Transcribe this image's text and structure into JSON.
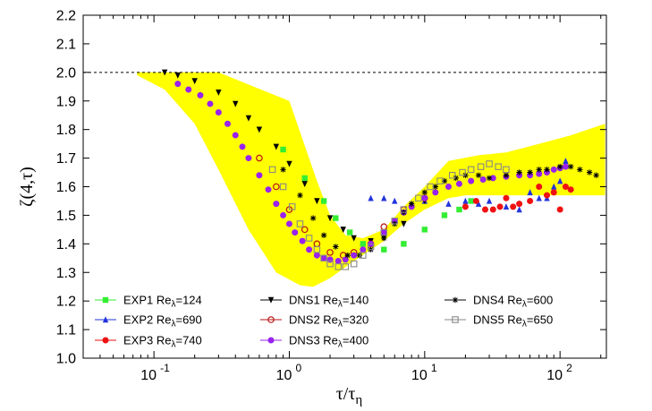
{
  "chart_data": {
    "type": "scatter",
    "xscale": "log",
    "xlim": [
      0.03,
      220
    ],
    "ylim": [
      1.0,
      2.2
    ],
    "xlabel": "τ/τη",
    "ylabel": "ζ(4,τ)",
    "xticks": [
      {
        "value": 0.1,
        "base": "10",
        "exp": "-1"
      },
      {
        "value": 1,
        "base": "10",
        "exp": "0"
      },
      {
        "value": 10,
        "base": "10",
        "exp": "1"
      },
      {
        "value": 100,
        "base": "10",
        "exp": "2"
      }
    ],
    "yticks": [
      "1.0",
      "1.1",
      "1.2",
      "1.3",
      "1.4",
      "1.5",
      "1.6",
      "1.7",
      "1.8",
      "1.9",
      "2.0",
      "2.1",
      "2.2"
    ],
    "reference_line": {
      "y": 2.0,
      "style": "dotted"
    },
    "band": {
      "color": "#ffff00",
      "upper": [
        [
          0.075,
          2.0
        ],
        [
          0.3,
          2.0
        ],
        [
          1.0,
          1.9
        ],
        [
          1.6,
          1.62
        ],
        [
          2.0,
          1.5
        ],
        [
          2.6,
          1.43
        ],
        [
          3.5,
          1.42
        ],
        [
          5,
          1.45
        ],
        [
          7,
          1.53
        ],
        [
          10,
          1.6
        ],
        [
          15,
          1.69
        ],
        [
          25,
          1.71
        ],
        [
          40,
          1.72
        ],
        [
          70,
          1.75
        ],
        [
          120,
          1.78
        ],
        [
          215,
          1.82
        ]
      ],
      "lower": [
        [
          215,
          1.57
        ],
        [
          120,
          1.57
        ],
        [
          60,
          1.57
        ],
        [
          30,
          1.57
        ],
        [
          20,
          1.57
        ],
        [
          15,
          1.56
        ],
        [
          10,
          1.52
        ],
        [
          7,
          1.47
        ],
        [
          5,
          1.41
        ],
        [
          3,
          1.34
        ],
        [
          2,
          1.28
        ],
        [
          1.5,
          1.25
        ],
        [
          1.2,
          1.255
        ],
        [
          0.8,
          1.3
        ],
        [
          0.5,
          1.45
        ],
        [
          0.3,
          1.66
        ],
        [
          0.2,
          1.82
        ],
        [
          0.12,
          1.94
        ],
        [
          0.075,
          1.99
        ]
      ]
    },
    "legend": {
      "placement": "bottom",
      "columns": 3
    },
    "series": [
      {
        "name": "EXP1",
        "sub_label": "Re",
        "sub": "λ",
        "value": "=124",
        "color": "#33ee33",
        "marker": "square",
        "points": [
          [
            0.9,
            1.73
          ],
          [
            1.3,
            1.63
          ],
          [
            1.8,
            1.55
          ],
          [
            2.2,
            1.49
          ],
          [
            2.8,
            1.44
          ],
          [
            3.5,
            1.4
          ],
          [
            5,
            1.38
          ],
          [
            7,
            1.4
          ],
          [
            10,
            1.45
          ],
          [
            14,
            1.5
          ],
          [
            18,
            1.52
          ],
          [
            22,
            1.55
          ]
        ]
      },
      {
        "name": "EXP2",
        "sub_label": "Re",
        "sub": "λ",
        "value": "=690",
        "color": "#2233dd",
        "marker": "triangle",
        "points": [
          [
            4,
            1.56
          ],
          [
            5,
            1.56
          ],
          [
            6,
            1.55
          ],
          [
            8,
            1.54
          ],
          [
            10,
            1.55
          ],
          [
            15,
            1.54
          ],
          [
            20,
            1.55
          ],
          [
            25,
            1.54
          ],
          [
            30,
            1.55
          ],
          [
            40,
            1.53
          ],
          [
            50,
            1.52
          ],
          [
            60,
            1.58
          ],
          [
            70,
            1.56
          ],
          [
            80,
            1.56
          ],
          [
            90,
            1.6
          ],
          [
            100,
            1.62
          ],
          [
            110,
            1.69
          ]
        ]
      },
      {
        "name": "EXP3",
        "sub_label": "Re",
        "sub": "λ",
        "value": "=740",
        "color": "#ee1111",
        "marker": "circle",
        "points": [
          [
            20,
            1.53
          ],
          [
            24,
            1.55
          ],
          [
            28,
            1.52
          ],
          [
            32,
            1.52
          ],
          [
            36,
            1.53
          ],
          [
            40,
            1.56
          ],
          [
            45,
            1.53
          ],
          [
            50,
            1.54
          ],
          [
            60,
            1.55
          ],
          [
            70,
            1.6
          ],
          [
            80,
            1.57
          ],
          [
            90,
            1.58
          ],
          [
            100,
            1.52
          ],
          [
            110,
            1.6
          ],
          [
            120,
            1.59
          ]
        ]
      },
      {
        "name": "DNS1",
        "sub_label": "Re",
        "sub": "λ",
        "value": "=140",
        "color": "#000000",
        "marker": "triangle-down",
        "points": [
          [
            0.12,
            2.0
          ],
          [
            0.15,
            1.99
          ],
          [
            0.2,
            1.97
          ],
          [
            0.3,
            1.93
          ],
          [
            0.4,
            1.89
          ],
          [
            0.5,
            1.84
          ],
          [
            0.6,
            1.8
          ],
          [
            0.8,
            1.74
          ],
          [
            1.0,
            1.68
          ],
          [
            1.3,
            1.61
          ],
          [
            1.6,
            1.55
          ],
          [
            2.0,
            1.49
          ],
          [
            2.5,
            1.45
          ],
          [
            3.0,
            1.42
          ],
          [
            4,
            1.41
          ],
          [
            5,
            1.42
          ],
          [
            7,
            1.47
          ],
          [
            10,
            1.55
          ]
        ]
      },
      {
        "name": "DNS2",
        "sub_label": "Re",
        "sub": "λ",
        "value": "=320",
        "color": "#bb1111",
        "marker": "circle-open",
        "points": [
          [
            0.6,
            1.7
          ],
          [
            0.8,
            1.6
          ],
          [
            1.0,
            1.52
          ],
          [
            1.3,
            1.45
          ],
          [
            1.6,
            1.4
          ],
          [
            2.0,
            1.37
          ],
          [
            2.5,
            1.36
          ],
          [
            3.0,
            1.37
          ],
          [
            4,
            1.4
          ],
          [
            5,
            1.46
          ],
          [
            7,
            1.52
          ],
          [
            10,
            1.56
          ]
        ]
      },
      {
        "name": "DNS3",
        "sub_label": "Re",
        "sub": "λ",
        "value": "=400",
        "color": "#9922ee",
        "marker": "circle",
        "points": [
          [
            0.15,
            1.96
          ],
          [
            0.18,
            1.94
          ],
          [
            0.22,
            1.92
          ],
          [
            0.26,
            1.89
          ],
          [
            0.3,
            1.86
          ],
          [
            0.35,
            1.82
          ],
          [
            0.4,
            1.78
          ],
          [
            0.45,
            1.74
          ],
          [
            0.5,
            1.7
          ],
          [
            0.6,
            1.64
          ],
          [
            0.7,
            1.59
          ],
          [
            0.8,
            1.54
          ],
          [
            0.9,
            1.5
          ],
          [
            1.0,
            1.47
          ],
          [
            1.1,
            1.44
          ],
          [
            1.25,
            1.41
          ],
          [
            1.4,
            1.38
          ],
          [
            1.6,
            1.36
          ],
          [
            1.8,
            1.35
          ],
          [
            2.0,
            1.345
          ],
          [
            2.3,
            1.34
          ],
          [
            2.6,
            1.345
          ],
          [
            3.0,
            1.36
          ],
          [
            3.5,
            1.38
          ],
          [
            4,
            1.4
          ],
          [
            5,
            1.44
          ],
          [
            6,
            1.48
          ],
          [
            7,
            1.51
          ],
          [
            8,
            1.53
          ],
          [
            10,
            1.56
          ],
          [
            12,
            1.58
          ],
          [
            15,
            1.6
          ],
          [
            18,
            1.61
          ],
          [
            22,
            1.62
          ],
          [
            27,
            1.625
          ],
          [
            32,
            1.63
          ],
          [
            40,
            1.635
          ],
          [
            50,
            1.64
          ],
          [
            60,
            1.64
          ],
          [
            70,
            1.645
          ],
          [
            80,
            1.65
          ],
          [
            90,
            1.66
          ],
          [
            100,
            1.665
          ],
          [
            110,
            1.67
          ]
        ]
      },
      {
        "name": "DNS4",
        "sub_label": "Re",
        "sub": "λ",
        "value": "=600",
        "color": "#000000",
        "marker": "asterisk",
        "points": [
          [
            0.9,
            1.66
          ],
          [
            1.2,
            1.57
          ],
          [
            1.5,
            1.49
          ],
          [
            1.8,
            1.43
          ],
          [
            2.2,
            1.39
          ],
          [
            2.7,
            1.36
          ],
          [
            3.3,
            1.36
          ],
          [
            4,
            1.38
          ],
          [
            5,
            1.42
          ],
          [
            6,
            1.47
          ],
          [
            7,
            1.51
          ],
          [
            8,
            1.54
          ],
          [
            10,
            1.58
          ],
          [
            12,
            1.6
          ],
          [
            14,
            1.62
          ],
          [
            17,
            1.63
          ],
          [
            20,
            1.64
          ],
          [
            25,
            1.64
          ],
          [
            30,
            1.63
          ],
          [
            40,
            1.64
          ],
          [
            50,
            1.65
          ],
          [
            60,
            1.65
          ],
          [
            70,
            1.66
          ],
          [
            80,
            1.66
          ],
          [
            100,
            1.67
          ],
          [
            120,
            1.67
          ],
          [
            140,
            1.66
          ],
          [
            165,
            1.65
          ],
          [
            185,
            1.64
          ]
        ]
      },
      {
        "name": "DNS5",
        "sub_label": "Re",
        "sub": "λ",
        "value": "=650",
        "color": "#888888",
        "marker": "square-open",
        "points": [
          [
            0.75,
            1.66
          ],
          [
            0.9,
            1.6
          ],
          [
            1.05,
            1.53
          ],
          [
            1.2,
            1.47
          ],
          [
            1.4,
            1.42
          ],
          [
            1.6,
            1.38
          ],
          [
            1.8,
            1.35
          ],
          [
            2.0,
            1.33
          ],
          [
            2.3,
            1.32
          ],
          [
            2.6,
            1.32
          ],
          [
            3.0,
            1.33
          ],
          [
            3.5,
            1.36
          ],
          [
            4,
            1.39
          ],
          [
            5,
            1.44
          ],
          [
            6,
            1.48
          ],
          [
            7,
            1.52
          ],
          [
            9,
            1.56
          ],
          [
            11,
            1.6
          ],
          [
            13,
            1.62
          ],
          [
            16,
            1.64
          ],
          [
            19,
            1.65
          ],
          [
            22,
            1.66
          ],
          [
            26,
            1.67
          ],
          [
            30,
            1.68
          ],
          [
            35,
            1.67
          ],
          [
            40,
            1.66
          ]
        ]
      }
    ]
  }
}
